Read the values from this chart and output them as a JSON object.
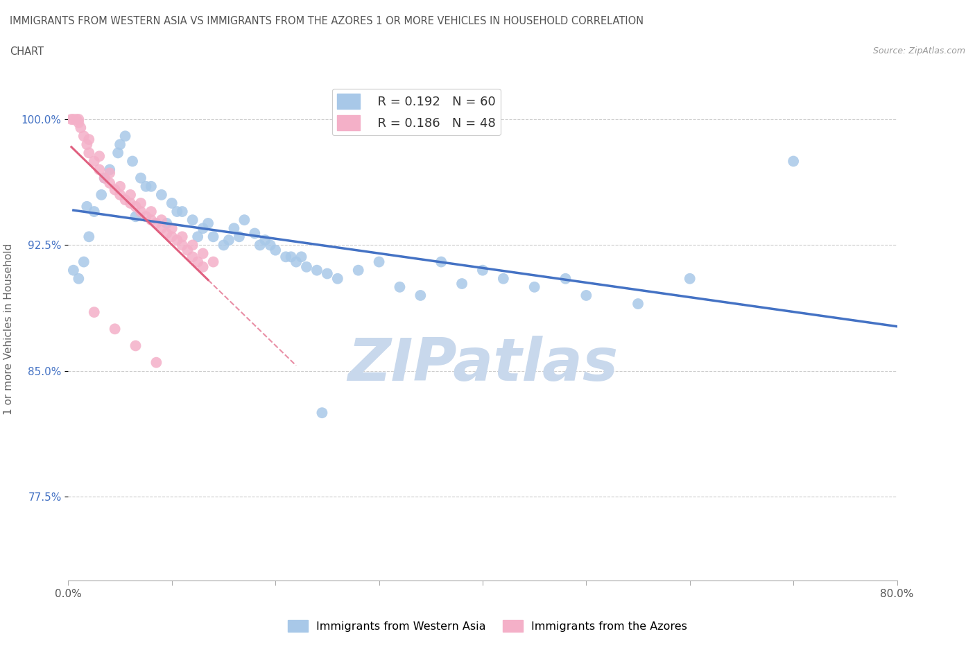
{
  "title_line1": "IMMIGRANTS FROM WESTERN ASIA VS IMMIGRANTS FROM THE AZORES 1 OR MORE VEHICLES IN HOUSEHOLD CORRELATION",
  "title_line2": "CHART",
  "source_text": "Source: ZipAtlas.com",
  "ylabel": "1 or more Vehicles in Household",
  "x_min": 0.0,
  "x_max": 80.0,
  "y_min": 72.5,
  "y_max": 102.5,
  "x_ticks": [
    0.0,
    10.0,
    20.0,
    30.0,
    40.0,
    50.0,
    60.0,
    70.0,
    80.0
  ],
  "y_ticks": [
    77.5,
    85.0,
    92.5,
    100.0
  ],
  "y_tick_labels": [
    "77.5%",
    "85.0%",
    "92.5%",
    "100.0%"
  ],
  "legend_r1": "R = 0.192",
  "legend_n1": "N = 60",
  "legend_r2": "R = 0.186",
  "legend_n2": "N = 48",
  "blue_color": "#a8c8e8",
  "pink_color": "#f4b0c8",
  "blue_line_color": "#4472c4",
  "pink_line_color": "#e06080",
  "watermark_color": "#c8d8ec",
  "blue_scatter_x": [
    0.5,
    1.0,
    1.5,
    2.0,
    2.5,
    3.2,
    4.0,
    4.8,
    5.5,
    6.2,
    7.0,
    8.0,
    9.0,
    10.0,
    11.0,
    12.0,
    13.0,
    14.0,
    15.0,
    16.0,
    17.0,
    18.0,
    19.0,
    20.0,
    21.0,
    22.0,
    23.0,
    24.0,
    25.0,
    26.0,
    28.0,
    30.0,
    32.0,
    34.0,
    36.0,
    38.0,
    40.0,
    42.0,
    45.0,
    48.0,
    50.0,
    55.0,
    60.0,
    5.0,
    7.5,
    10.5,
    13.5,
    16.5,
    19.5,
    22.5,
    1.8,
    3.5,
    6.5,
    9.5,
    12.5,
    15.5,
    18.5,
    21.5,
    24.5,
    70.0
  ],
  "blue_scatter_y": [
    91.0,
    90.5,
    91.5,
    93.0,
    94.5,
    95.5,
    97.0,
    98.0,
    99.0,
    97.5,
    96.5,
    96.0,
    95.5,
    95.0,
    94.5,
    94.0,
    93.5,
    93.0,
    92.5,
    93.5,
    94.0,
    93.2,
    92.8,
    92.2,
    91.8,
    91.5,
    91.2,
    91.0,
    90.8,
    90.5,
    91.0,
    91.5,
    90.0,
    89.5,
    91.5,
    90.2,
    91.0,
    90.5,
    90.0,
    90.5,
    89.5,
    89.0,
    90.5,
    98.5,
    96.0,
    94.5,
    93.8,
    93.0,
    92.5,
    91.8,
    94.8,
    96.5,
    94.2,
    93.8,
    93.0,
    92.8,
    92.5,
    91.8,
    82.5,
    97.5
  ],
  "pink_scatter_x": [
    0.3,
    0.5,
    0.8,
    1.0,
    1.2,
    1.5,
    1.8,
    2.0,
    2.5,
    3.0,
    3.5,
    4.0,
    4.5,
    5.0,
    5.5,
    6.0,
    6.5,
    7.0,
    7.5,
    8.0,
    8.5,
    9.0,
    9.5,
    10.0,
    10.5,
    11.0,
    11.5,
    12.0,
    12.5,
    13.0,
    1.0,
    2.0,
    3.0,
    4.0,
    5.0,
    6.0,
    7.0,
    8.0,
    9.0,
    10.0,
    11.0,
    12.0,
    13.0,
    14.0,
    2.5,
    4.5,
    6.5,
    8.5
  ],
  "pink_scatter_y": [
    100.0,
    100.0,
    100.0,
    100.0,
    99.5,
    99.0,
    98.5,
    98.0,
    97.5,
    97.0,
    96.5,
    96.2,
    95.8,
    95.5,
    95.2,
    95.0,
    94.8,
    94.5,
    94.2,
    94.0,
    93.8,
    93.5,
    93.2,
    93.0,
    92.8,
    92.5,
    92.2,
    91.8,
    91.5,
    91.2,
    99.8,
    98.8,
    97.8,
    96.8,
    96.0,
    95.5,
    95.0,
    94.5,
    94.0,
    93.5,
    93.0,
    92.5,
    92.0,
    91.5,
    88.5,
    87.5,
    86.5,
    85.5
  ]
}
